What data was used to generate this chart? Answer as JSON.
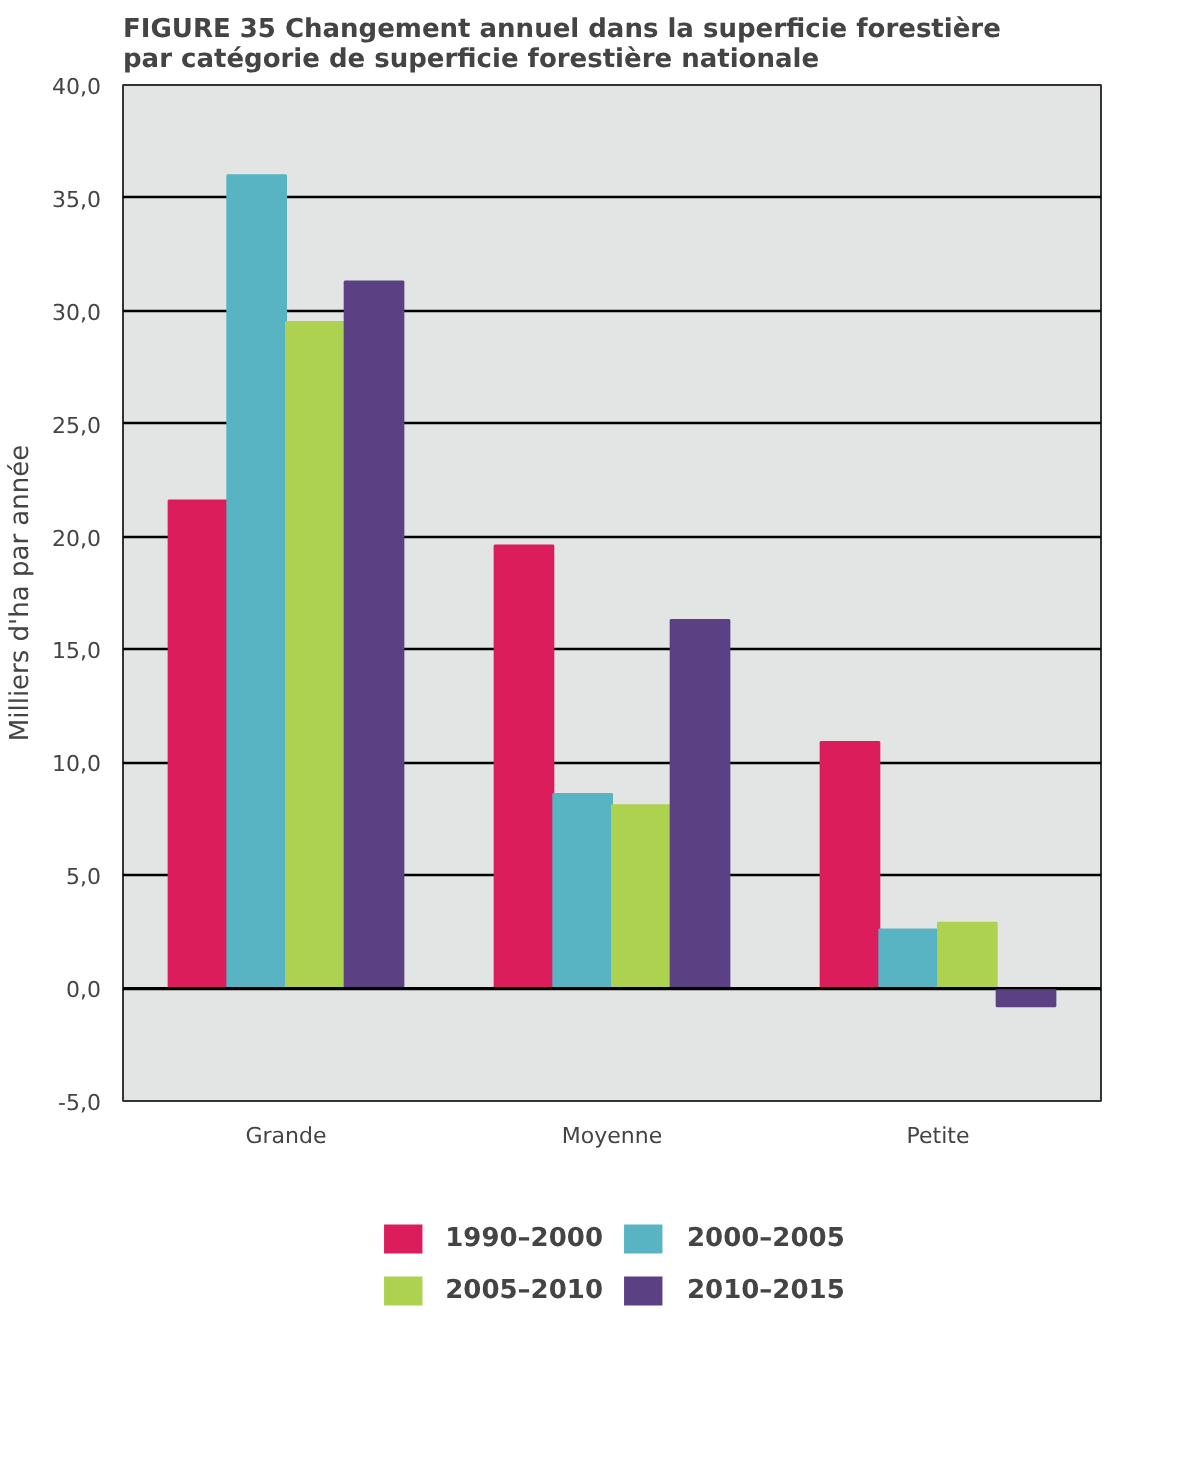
{
  "chart_data": {
    "type": "bar",
    "title": "FIGURE 35  Changement annuel dans la superficie forestière par catégorie de superficie forestière nationale",
    "ylabel": "Milliers d'ha par année",
    "categories": [
      "Grande",
      "Moyenne",
      "Petite"
    ],
    "series": [
      {
        "name": "1990–2000",
        "color": "#db1d5c",
        "values": [
          21.6,
          19.6,
          10.9
        ]
      },
      {
        "name": "2000–2005",
        "color": "#58b4c3",
        "values": [
          36.0,
          8.6,
          2.6
        ]
      },
      {
        "name": "2005–2010",
        "color": "#add250",
        "values": [
          29.5,
          8.1,
          2.9
        ]
      },
      {
        "name": "2010–2015",
        "color": "#5b4084",
        "values": [
          31.3,
          16.3,
          -0.8
        ]
      }
    ],
    "ylim": [
      -5,
      40
    ],
    "yticks": [
      {
        "value": -5,
        "label": "-5,0"
      },
      {
        "value": 0,
        "label": "0,0"
      },
      {
        "value": 5,
        "label": "5,0"
      },
      {
        "value": 10,
        "label": "10,0"
      },
      {
        "value": 15,
        "label": "15,0"
      },
      {
        "value": 20,
        "label": "20,0"
      },
      {
        "value": 25,
        "label": "25,0"
      },
      {
        "value": 30,
        "label": "30,0"
      },
      {
        "value": 35,
        "label": "35,0"
      },
      {
        "value": 40,
        "label": "40,0"
      }
    ],
    "grid": "y",
    "legend": "bottom"
  }
}
